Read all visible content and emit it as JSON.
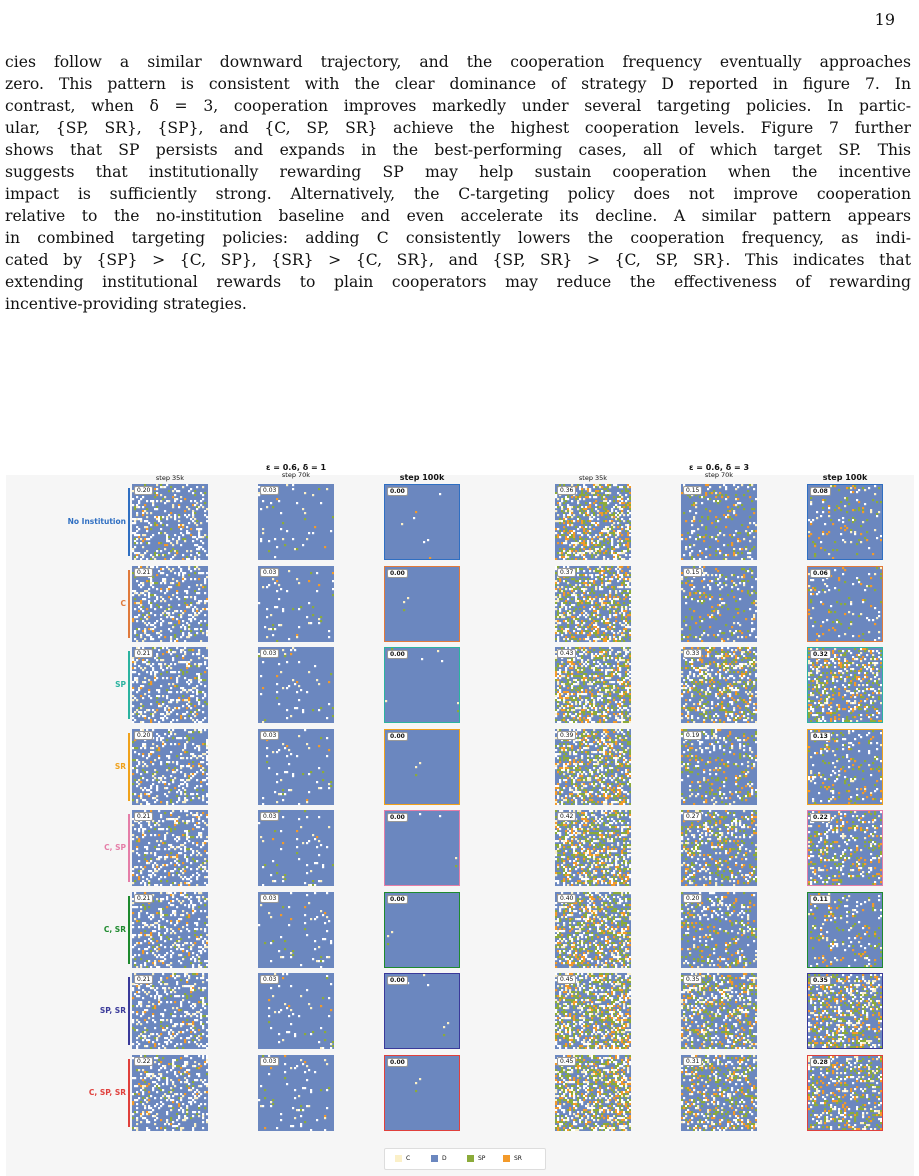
{
  "page": {
    "number": "19"
  },
  "body_lines": [
    "cies follow a similar downward trajectory, and the cooperation frequency eventually approaches",
    "zero. This pattern is consistent with the clear dominance of strategy D reported in figure 7. In",
    "contrast, when δ = 3, cooperation improves markedly under several targeting policies. In partic-",
    "ular, {SP, SR}, {SP}, and {C, SP, SR} achieve the highest cooperation levels. Figure 7 further",
    "shows that SP persists and expands in the best-performing cases, all of which target SP. This",
    "suggests that institutionally rewarding SP may help sustain cooperation when the incentive",
    "impact is sufficiently strong. Alternatively, the C-targeting policy does not improve cooperation",
    "relative to the no-institution baseline and even accelerate its decline. A similar pattern appears",
    "in combined targeting policies: adding C consistently lowers the cooperation frequency, as indi-",
    "cated by {SP} > {C, SP}, {SR} > {C, SR}, and {SP, SR} > {C, SP, SR}. This indicates that",
    "extending institutional rewards to plain cooperators may reduce the effectiveness of rewarding",
    "incentive-providing strategies."
  ],
  "figure": {
    "groups": [
      {
        "title": "ε = 0.6,  δ = 1",
        "steps": [
          "step 35k",
          "step 70k",
          "step 100k"
        ]
      },
      {
        "title": "ε = 0.6,  δ = 3",
        "steps": [
          "step 35k",
          "step 70k",
          "step 100k"
        ]
      }
    ],
    "rows": [
      {
        "label": "No Institution",
        "color": "#2f6fc2",
        "d1": [
          "0.20",
          "0.03",
          "0.00"
        ],
        "d3": [
          "0.36",
          "0.15",
          "0.08"
        ]
      },
      {
        "label": "C",
        "color": "#e07a3c",
        "d1": [
          "0.21",
          "0.03",
          "0.00"
        ],
        "d3": [
          "0.37",
          "0.15",
          "0.06"
        ]
      },
      {
        "label": "SP",
        "color": "#2bb3a0",
        "d1": [
          "0.21",
          "0.03",
          "0.00"
        ],
        "d3": [
          "0.43",
          "0.33",
          "0.32"
        ]
      },
      {
        "label": "SR",
        "color": "#f0a21c",
        "d1": [
          "0.20",
          "0.03",
          "0.00"
        ],
        "d3": [
          "0.39",
          "0.19",
          "0.13"
        ]
      },
      {
        "label": "C, SP",
        "color": "#e57ea8",
        "d1": [
          "0.21",
          "0.03",
          "0.00"
        ],
        "d3": [
          "0.42",
          "0.27",
          "0.22"
        ]
      },
      {
        "label": "C, SR",
        "color": "#1e8a2e",
        "d1": [
          "0.21",
          "0.03",
          "0.00"
        ],
        "d3": [
          "0.40",
          "0.20",
          "0.11"
        ]
      },
      {
        "label": "SP, SR",
        "color": "#3a3a9a",
        "d1": [
          "0.21",
          "0.03",
          "0.00"
        ],
        "d3": [
          "0.45",
          "0.35",
          "0.35"
        ]
      },
      {
        "label": "C, SP, SR",
        "color": "#e0403c",
        "d1": [
          "0.22",
          "0.03",
          "0.00"
        ],
        "d3": [
          "0.45",
          "0.31",
          "0.28"
        ]
      }
    ],
    "legend": [
      {
        "label": "C",
        "color": "#fbf0c8"
      },
      {
        "label": "D",
        "color": "#6b87bf"
      },
      {
        "label": "SP",
        "color": "#8bab3a"
      },
      {
        "label": "SR",
        "color": "#f39a2a"
      }
    ]
  }
}
